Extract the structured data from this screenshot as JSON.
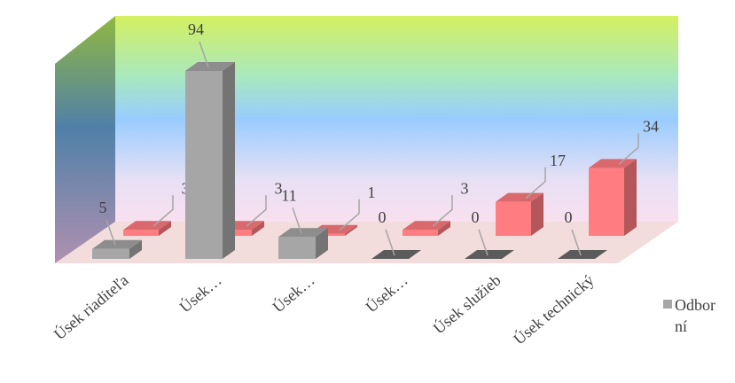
{
  "chart_data": {
    "type": "bar3d",
    "categories": [
      "Úsek riaditeľa",
      "Úsek…",
      "Úsek…",
      "Úsek…",
      "Úsek služieb",
      "Úsek technický"
    ],
    "series": [
      {
        "name": "Odborní",
        "color": "#a6a6a6",
        "values": [
          5,
          94,
          11,
          0,
          0,
          0
        ]
      },
      {
        "color": "#ff7c80",
        "values": [
          3,
          3,
          1,
          3,
          17,
          34
        ]
      }
    ]
  }
}
